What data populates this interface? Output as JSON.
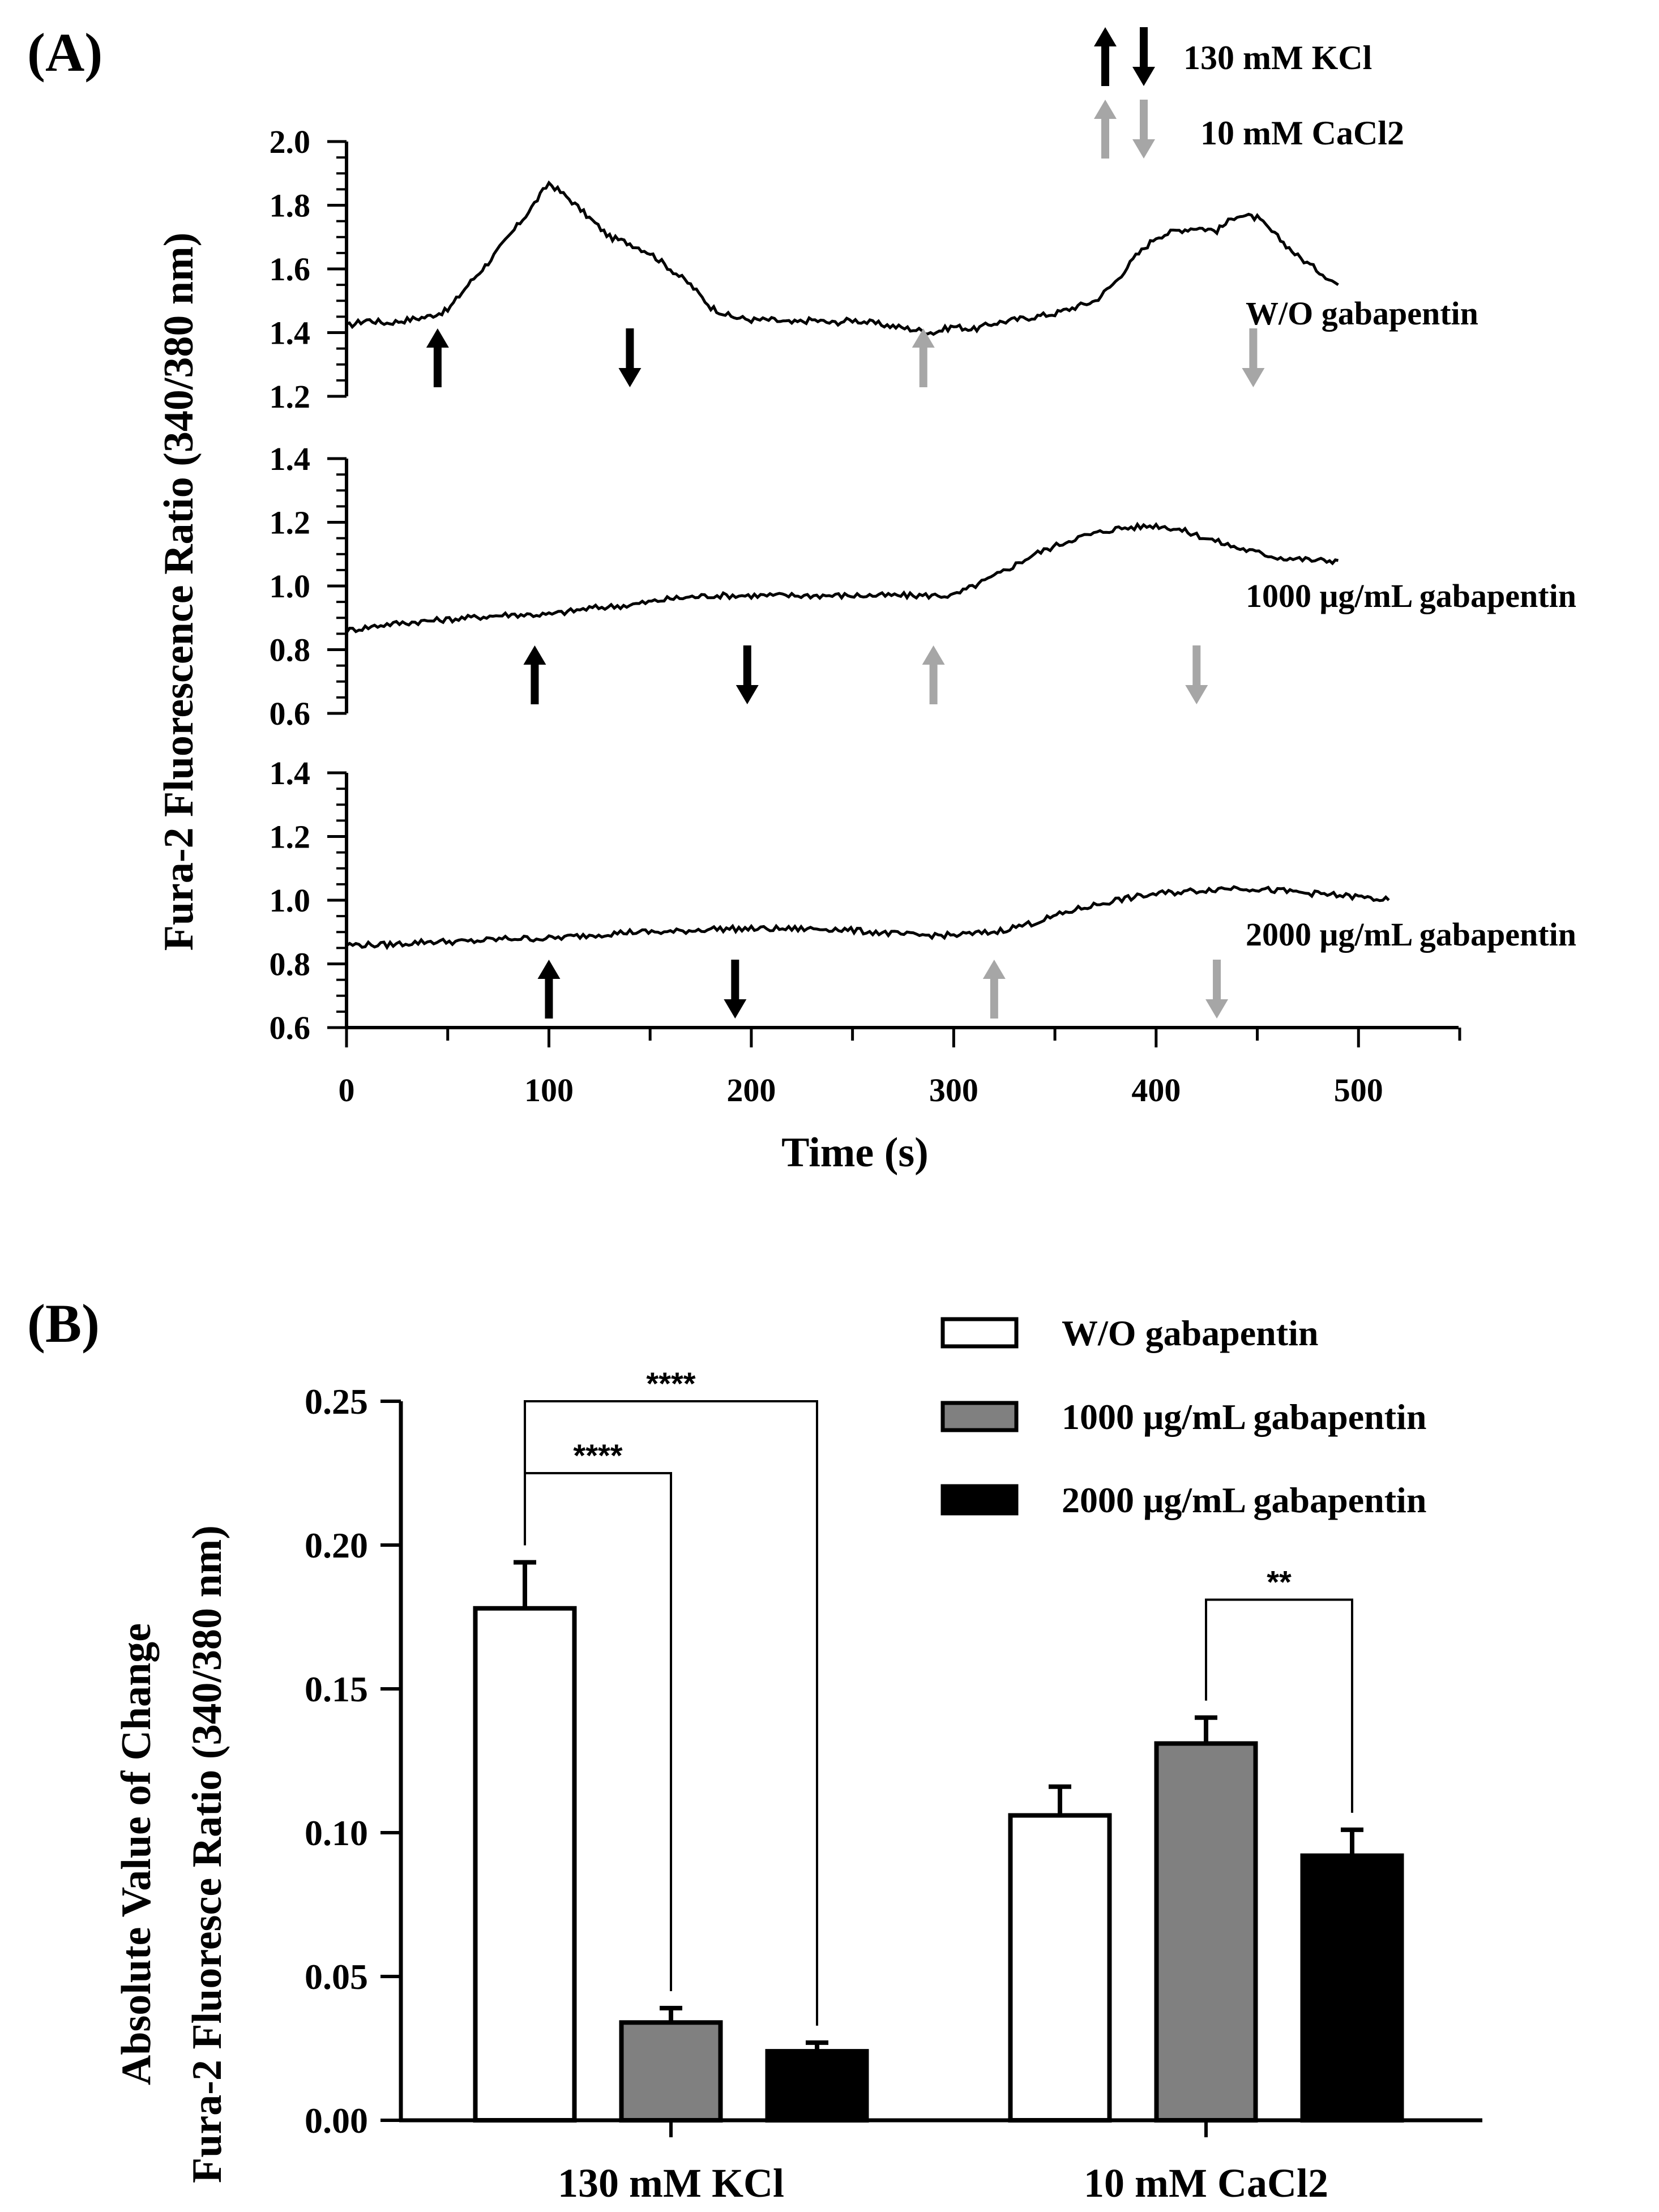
{
  "chart_data": [
    {
      "panel": "(A)",
      "type": "line",
      "xlabel": "Time (s)",
      "ylabel": "Fura-2 Fluorescence Ratio (340/380 nm)",
      "xlim": [
        0,
        550
      ],
      "xticks": [
        "0",
        "100",
        "200",
        "300",
        "400",
        "500"
      ],
      "legend": [
        {
          "label": "130 mM KCl",
          "color": "#000000"
        },
        {
          "label": "10 mM CaCl2",
          "color": "#a6a6a6"
        }
      ],
      "subplots": [
        {
          "label": "W/O gabapentin",
          "ylim": [
            1.2,
            2.0
          ],
          "yticks": [
            "1.2",
            "1.4",
            "1.6",
            "1.8",
            "2.0"
          ],
          "x": [
            0,
            10,
            20,
            30,
            40,
            50,
            60,
            70,
            80,
            90,
            100,
            110,
            120,
            130,
            140,
            150,
            160,
            170,
            180,
            190,
            200,
            210,
            220,
            230,
            240,
            250,
            260,
            270,
            280,
            290,
            300,
            310,
            320,
            330,
            340,
            350,
            360,
            370,
            380,
            390,
            400,
            410,
            420,
            430,
            440,
            450,
            460,
            470,
            490
          ],
          "y": [
            1.42,
            1.44,
            1.43,
            1.44,
            1.45,
            1.47,
            1.55,
            1.62,
            1.7,
            1.78,
            1.87,
            1.82,
            1.76,
            1.7,
            1.68,
            1.65,
            1.6,
            1.55,
            1.48,
            1.45,
            1.44,
            1.44,
            1.43,
            1.44,
            1.43,
            1.44,
            1.43,
            1.42,
            1.41,
            1.4,
            1.42,
            1.41,
            1.43,
            1.44,
            1.45,
            1.46,
            1.48,
            1.5,
            1.56,
            1.64,
            1.7,
            1.72,
            1.73,
            1.72,
            1.77,
            1.76,
            1.7,
            1.64,
            1.55
          ],
          "kcl_on": 45,
          "kcl_off": 140,
          "cacl2_on": 285,
          "cacl2_off": 448
        },
        {
          "label": "1000 μg/mL gabapentin",
          "ylim": [
            0.6,
            1.4
          ],
          "yticks": [
            "0.6",
            "0.8",
            "1.0",
            "1.2",
            "1.4"
          ],
          "x": [
            0,
            20,
            40,
            60,
            80,
            100,
            120,
            140,
            160,
            180,
            200,
            220,
            240,
            260,
            280,
            300,
            320,
            340,
            360,
            380,
            400,
            410,
            420,
            440,
            460,
            480,
            490
          ],
          "y": [
            0.86,
            0.88,
            0.89,
            0.9,
            0.91,
            0.91,
            0.93,
            0.94,
            0.96,
            0.97,
            0.97,
            0.97,
            0.97,
            0.97,
            0.97,
            0.97,
            1.03,
            1.1,
            1.15,
            1.18,
            1.19,
            1.18,
            1.16,
            1.12,
            1.09,
            1.08,
            1.08
          ],
          "kcl_on": 93,
          "kcl_off": 198,
          "cacl2_on": 290,
          "cacl2_off": 420
        },
        {
          "label": "2000 μg/mL gabapentin",
          "ylim": [
            0.6,
            1.4
          ],
          "yticks": [
            "0.6",
            "0.8",
            "1.0",
            "1.2",
            "1.4"
          ],
          "x": [
            0,
            20,
            40,
            60,
            80,
            100,
            120,
            140,
            160,
            180,
            200,
            220,
            240,
            260,
            280,
            300,
            320,
            340,
            360,
            380,
            400,
            420,
            440,
            460,
            480,
            500,
            515
          ],
          "y": [
            0.86,
            0.86,
            0.87,
            0.87,
            0.88,
            0.88,
            0.89,
            0.9,
            0.9,
            0.91,
            0.91,
            0.91,
            0.91,
            0.9,
            0.89,
            0.89,
            0.9,
            0.93,
            0.97,
            1.0,
            1.02,
            1.03,
            1.04,
            1.03,
            1.02,
            1.01,
            1.0
          ],
          "kcl_on": 100,
          "kcl_off": 192,
          "cacl2_on": 320,
          "cacl2_off": 430
        }
      ]
    },
    {
      "panel": "(B)",
      "type": "bar",
      "ylabel_line1": "Absolute Value of Change",
      "ylabel_line2": "Fura-2 Fluoresce Ratio (340/380 nm)",
      "ylim": [
        0,
        0.25
      ],
      "yticks": [
        "0.00",
        "0.05",
        "0.10",
        "0.15",
        "0.20",
        "0.25"
      ],
      "categories": [
        "130 mM KCl",
        "10 mM CaCl2"
      ],
      "series": [
        {
          "name": "W/O gabapentin",
          "color": "#ffffff",
          "values": [
            0.178,
            0.106
          ],
          "errors": [
            0.016,
            0.01
          ]
        },
        {
          "name": "1000 μg/mL gabapentin",
          "color": "#808080",
          "values": [
            0.034,
            0.131
          ],
          "errors": [
            0.005,
            0.009
          ]
        },
        {
          "name": "2000 μg/mL gabapentin",
          "color": "#000000",
          "values": [
            0.024,
            0.092
          ],
          "errors": [
            0.003,
            0.009
          ]
        }
      ],
      "significance": [
        {
          "category": 0,
          "from": 0,
          "to": 2,
          "label": "****"
        },
        {
          "category": 0,
          "from": 0,
          "to": 1,
          "label": "****"
        },
        {
          "category": 1,
          "from": 1,
          "to": 2,
          "label": "**"
        }
      ]
    }
  ]
}
